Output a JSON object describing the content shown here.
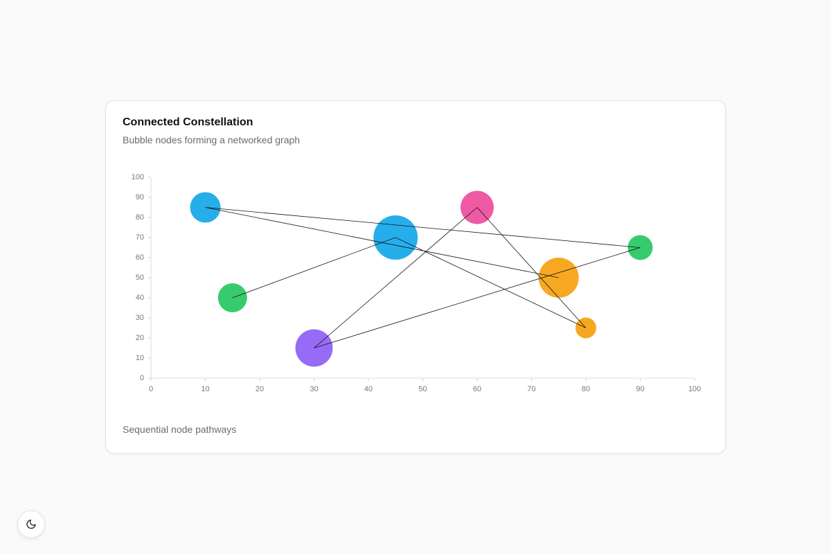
{
  "chart_data": {
    "type": "bubble",
    "title": "Connected Constellation",
    "subtitle": "Bubble nodes forming a networked graph",
    "caption": "Sequential node pathways",
    "x": [
      15,
      45,
      80,
      60,
      30,
      90,
      10,
      75
    ],
    "y": [
      40,
      70,
      25,
      85,
      15,
      65,
      85,
      50
    ],
    "sizes": [
      21,
      32,
      15,
      24,
      27,
      18,
      22,
      29
    ],
    "colors": [
      "#22c55e",
      "#0ea5e9",
      "#f59e0b",
      "#ec4899",
      "#8b5cf6",
      "#22c55e",
      "#0ea5e9",
      "#f59e0b"
    ],
    "line_color": "#111111",
    "xlim": [
      0,
      100
    ],
    "ylim": [
      0,
      100
    ],
    "xticks": [
      0,
      10,
      20,
      30,
      40,
      50,
      60,
      70,
      80,
      90,
      100
    ],
    "yticks": [
      0,
      10,
      20,
      30,
      40,
      50,
      60,
      70,
      80,
      90,
      100
    ]
  }
}
